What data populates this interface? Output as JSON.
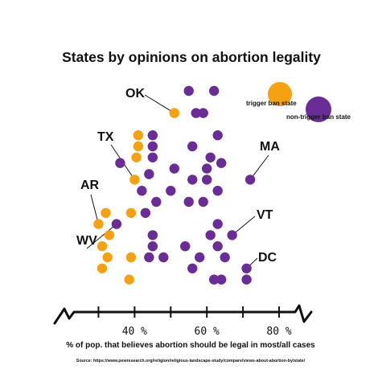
{
  "title": "States by opinions on abortion legality",
  "source": "Source: https://www.pewresearch.org/religion/religious-landscape-study/compare/views-about-abortion-by/state/",
  "colors": {
    "trigger": "#f5a112",
    "nontrigger": "#6a2d96",
    "ink": "#111111"
  },
  "chart_data": {
    "type": "scatter",
    "title": "States by opinions on abortion legality",
    "xlabel": "% of pop. that believes abortion should be legal in most/all cases",
    "xlim": [
      25,
      84
    ],
    "xticks": [
      40,
      60,
      80
    ],
    "xtick_labels": [
      "40 %",
      "60 %",
      "80 %"
    ],
    "legend_position": "top-right",
    "series": [
      {
        "name": "trigger ban state",
        "color": "#f5a112",
        "points": [
          {
            "x": 51,
            "row": 3
          },
          {
            "x": 41,
            "row": 5
          },
          {
            "x": 41,
            "row": 6
          },
          {
            "x": 40.5,
            "row": 7
          },
          {
            "x": 40,
            "row": 9
          },
          {
            "x": 39,
            "row": 12
          },
          {
            "x": 32,
            "row": 12
          },
          {
            "x": 30,
            "row": 13
          },
          {
            "x": 33,
            "row": 14
          },
          {
            "x": 31,
            "row": 15
          },
          {
            "x": 32.5,
            "row": 16
          },
          {
            "x": 39,
            "row": 16
          },
          {
            "x": 31,
            "row": 17
          },
          {
            "x": 38.5,
            "row": 18
          }
        ]
      },
      {
        "name": "non-trigger ban state",
        "color": "#6a2d96",
        "points": [
          {
            "x": 55,
            "row": 1
          },
          {
            "x": 62,
            "row": 1
          },
          {
            "x": 57,
            "row": 3
          },
          {
            "x": 59,
            "row": 3
          },
          {
            "x": 45,
            "row": 5
          },
          {
            "x": 63,
            "row": 5
          },
          {
            "x": 45,
            "row": 6
          },
          {
            "x": 56,
            "row": 6
          },
          {
            "x": 45,
            "row": 7
          },
          {
            "x": 61,
            "row": 7
          },
          {
            "x": 36,
            "row": 7.5
          },
          {
            "x": 64,
            "row": 7.5
          },
          {
            "x": 51,
            "row": 8
          },
          {
            "x": 60,
            "row": 8
          },
          {
            "x": 44,
            "row": 8.5
          },
          {
            "x": 56,
            "row": 9
          },
          {
            "x": 60,
            "row": 9
          },
          {
            "x": 72,
            "row": 9
          },
          {
            "x": 42,
            "row": 10
          },
          {
            "x": 50,
            "row": 10
          },
          {
            "x": 63,
            "row": 10
          },
          {
            "x": 46,
            "row": 11
          },
          {
            "x": 55,
            "row": 11
          },
          {
            "x": 59,
            "row": 11
          },
          {
            "x": 43,
            "row": 12
          },
          {
            "x": 35,
            "row": 13
          },
          {
            "x": 63,
            "row": 13
          },
          {
            "x": 45,
            "row": 14
          },
          {
            "x": 61,
            "row": 14
          },
          {
            "x": 67,
            "row": 14
          },
          {
            "x": 45,
            "row": 15
          },
          {
            "x": 54,
            "row": 15
          },
          {
            "x": 63,
            "row": 15
          },
          {
            "x": 44,
            "row": 16
          },
          {
            "x": 48,
            "row": 16
          },
          {
            "x": 58,
            "row": 16
          },
          {
            "x": 65,
            "row": 16
          },
          {
            "x": 56,
            "row": 17
          },
          {
            "x": 71,
            "row": 17
          },
          {
            "x": 62,
            "row": 18
          },
          {
            "x": 64,
            "row": 18
          },
          {
            "x": 71,
            "row": 18
          }
        ]
      }
    ],
    "annotations": [
      {
        "label": "OK",
        "series": 0,
        "point": 0
      },
      {
        "label": "TX",
        "series": 0,
        "point": 4
      },
      {
        "label": "AR",
        "series": 0,
        "point": 7
      },
      {
        "label": "WV",
        "series": 1,
        "point": 25
      },
      {
        "label": "MA",
        "series": 1,
        "point": 17
      },
      {
        "label": "VT",
        "series": 1,
        "point": 29
      },
      {
        "label": "DC",
        "series": 1,
        "point": 38
      }
    ]
  }
}
